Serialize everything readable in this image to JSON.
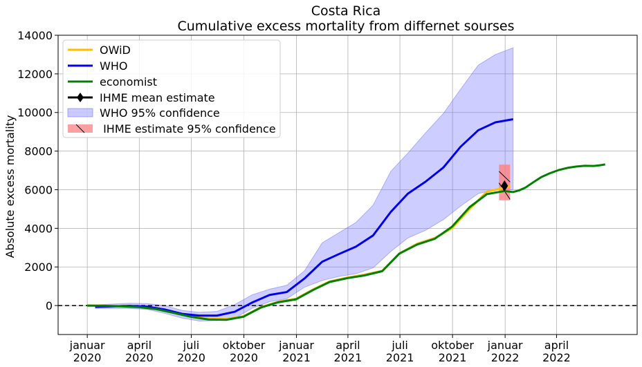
{
  "chart_data": {
    "type": "line",
    "title": "Costa Rica",
    "subtitle": "Cumulative excess mortality from differnet sourses",
    "xlabel": "",
    "ylabel": "Absolute excess mortality",
    "ylim": [
      -1500,
      14000
    ],
    "xlim": [
      "2019-11-11",
      "2022-08-20"
    ],
    "grid": true,
    "legend_position": "top-left",
    "x_ticks": [
      {
        "date": "2020-01-01",
        "line1": "januar",
        "line2": "2020"
      },
      {
        "date": "2020-04-01",
        "line1": "april",
        "line2": "2020"
      },
      {
        "date": "2020-07-01",
        "line1": "juli",
        "line2": "2020"
      },
      {
        "date": "2020-10-01",
        "line1": "oktober",
        "line2": "2020"
      },
      {
        "date": "2021-01-01",
        "line1": "januar",
        "line2": "2021"
      },
      {
        "date": "2021-04-01",
        "line1": "april",
        "line2": "2021"
      },
      {
        "date": "2021-07-01",
        "line1": "juli",
        "line2": "2021"
      },
      {
        "date": "2021-10-01",
        "line1": "oktober",
        "line2": "2021"
      },
      {
        "date": "2022-01-01",
        "line1": "januar",
        "line2": "2022"
      },
      {
        "date": "2022-04-01",
        "line1": "april",
        "line2": "2022"
      }
    ],
    "y_ticks": [
      0,
      2000,
      4000,
      6000,
      8000,
      10000,
      12000,
      14000
    ],
    "series": [
      {
        "name": "OWiD",
        "color": "#ffbf00",
        "points": [
          [
            "2020-01-01",
            0
          ],
          [
            "2020-01-31",
            0
          ],
          [
            "2020-03-01",
            -30
          ],
          [
            "2020-03-31",
            -60
          ],
          [
            "2020-04-30",
            -150
          ],
          [
            "2020-05-31",
            -350
          ],
          [
            "2020-06-30",
            -550
          ],
          [
            "2020-07-31",
            -680
          ],
          [
            "2020-08-31",
            -700
          ],
          [
            "2020-09-30",
            -560
          ],
          [
            "2020-10-31",
            -80
          ],
          [
            "2020-11-30",
            200
          ],
          [
            "2020-12-31",
            350
          ],
          [
            "2021-01-31",
            850
          ],
          [
            "2021-02-28",
            1250
          ],
          [
            "2021-03-31",
            1450
          ],
          [
            "2021-04-30",
            1600
          ],
          [
            "2021-05-31",
            1800
          ],
          [
            "2021-06-30",
            2700
          ],
          [
            "2021-07-31",
            3200
          ],
          [
            "2021-08-31",
            3500
          ],
          [
            "2021-09-30",
            4000
          ],
          [
            "2021-10-31",
            5000
          ],
          [
            "2021-11-30",
            5900
          ],
          [
            "2021-12-31",
            6100
          ],
          [
            "2022-01-10",
            6200
          ]
        ]
      },
      {
        "name": "WHO",
        "color": "#0000ee",
        "points": [
          [
            "2020-01-15",
            -70
          ],
          [
            "2020-02-15",
            -40
          ],
          [
            "2020-03-15",
            -20
          ],
          [
            "2020-04-15",
            -60
          ],
          [
            "2020-05-15",
            -200
          ],
          [
            "2020-06-15",
            -430
          ],
          [
            "2020-07-15",
            -520
          ],
          [
            "2020-08-15",
            -520
          ],
          [
            "2020-09-15",
            -320
          ],
          [
            "2020-10-15",
            150
          ],
          [
            "2020-11-15",
            550
          ],
          [
            "2020-12-15",
            700
          ],
          [
            "2021-01-15",
            1400
          ],
          [
            "2021-02-15",
            2270
          ],
          [
            "2021-03-15",
            2650
          ],
          [
            "2021-04-15",
            3050
          ],
          [
            "2021-05-15",
            3630
          ],
          [
            "2021-06-15",
            4850
          ],
          [
            "2021-07-15",
            5800
          ],
          [
            "2021-08-15",
            6420
          ],
          [
            "2021-09-15",
            7150
          ],
          [
            "2021-10-15",
            8220
          ],
          [
            "2021-11-15",
            9080
          ],
          [
            "2021-12-15",
            9490
          ],
          [
            "2022-01-15",
            9650
          ]
        ]
      },
      {
        "name": "economist",
        "color": "#008000",
        "points": [
          [
            "2020-01-01",
            0
          ],
          [
            "2020-01-31",
            -10
          ],
          [
            "2020-03-01",
            -40
          ],
          [
            "2020-03-31",
            -80
          ],
          [
            "2020-04-30",
            -180
          ],
          [
            "2020-05-31",
            -380
          ],
          [
            "2020-06-30",
            -580
          ],
          [
            "2020-07-31",
            -720
          ],
          [
            "2020-08-31",
            -740
          ],
          [
            "2020-09-30",
            -580
          ],
          [
            "2020-10-31",
            -100
          ],
          [
            "2020-11-30",
            170
          ],
          [
            "2020-12-31",
            320
          ],
          [
            "2021-01-31",
            820
          ],
          [
            "2021-02-28",
            1220
          ],
          [
            "2021-03-31",
            1420
          ],
          [
            "2021-04-30",
            1560
          ],
          [
            "2021-05-31",
            1780
          ],
          [
            "2021-06-30",
            2690
          ],
          [
            "2021-07-31",
            3160
          ],
          [
            "2021-08-31",
            3460
          ],
          [
            "2021-09-30",
            4080
          ],
          [
            "2021-10-31",
            5100
          ],
          [
            "2021-11-30",
            5770
          ],
          [
            "2021-12-15",
            5850
          ],
          [
            "2021-12-31",
            5930
          ],
          [
            "2022-01-15",
            5880
          ],
          [
            "2022-01-25",
            5960
          ],
          [
            "2022-02-05",
            6100
          ],
          [
            "2022-02-20",
            6400
          ],
          [
            "2022-03-05",
            6650
          ],
          [
            "2022-03-20",
            6850
          ],
          [
            "2022-04-05",
            7020
          ],
          [
            "2022-04-20",
            7130
          ],
          [
            "2022-05-05",
            7200
          ],
          [
            "2022-05-20",
            7240
          ],
          [
            "2022-06-05",
            7230
          ],
          [
            "2022-06-15",
            7260
          ],
          [
            "2022-06-25",
            7310
          ]
        ]
      }
    ],
    "who_confidence": {
      "name": "WHO 95% confidence",
      "color": "#6666ff",
      "upper": [
        [
          "2020-01-15",
          30
        ],
        [
          "2020-02-15",
          80
        ],
        [
          "2020-03-15",
          120
        ],
        [
          "2020-04-15",
          100
        ],
        [
          "2020-05-15",
          0
        ],
        [
          "2020-06-15",
          -250
        ],
        [
          "2020-07-15",
          -350
        ],
        [
          "2020-08-15",
          -300
        ],
        [
          "2020-09-15",
          50
        ],
        [
          "2020-10-15",
          550
        ],
        [
          "2020-11-15",
          850
        ],
        [
          "2020-12-15",
          1050
        ],
        [
          "2021-01-15",
          1800
        ],
        [
          "2021-02-15",
          3250
        ],
        [
          "2021-03-15",
          3750
        ],
        [
          "2021-04-15",
          4300
        ],
        [
          "2021-05-15",
          5200
        ],
        [
          "2021-06-15",
          6950
        ],
        [
          "2021-07-15",
          7900
        ],
        [
          "2021-08-15",
          8950
        ],
        [
          "2021-09-15",
          9950
        ],
        [
          "2021-10-15",
          11200
        ],
        [
          "2021-11-15",
          12450
        ],
        [
          "2021-12-15",
          13000
        ],
        [
          "2022-01-15",
          13350
        ]
      ],
      "lower": [
        [
          "2020-01-15",
          -150
        ],
        [
          "2020-02-15",
          -150
        ],
        [
          "2020-03-15",
          -150
        ],
        [
          "2020-04-15",
          -200
        ],
        [
          "2020-05-15",
          -400
        ],
        [
          "2020-06-15",
          -650
        ],
        [
          "2020-07-15",
          -800
        ],
        [
          "2020-08-15",
          -780
        ],
        [
          "2020-09-15",
          -650
        ],
        [
          "2020-10-15",
          -150
        ],
        [
          "2020-11-15",
          200
        ],
        [
          "2020-12-15",
          350
        ],
        [
          "2021-01-15",
          950
        ],
        [
          "2021-02-15",
          1300
        ],
        [
          "2021-03-15",
          1500
        ],
        [
          "2021-04-15",
          1650
        ],
        [
          "2021-05-15",
          1950
        ],
        [
          "2021-06-15",
          2800
        ],
        [
          "2021-07-15",
          3500
        ],
        [
          "2021-08-15",
          3900
        ],
        [
          "2021-09-15",
          4450
        ],
        [
          "2021-10-15",
          5150
        ],
        [
          "2021-11-15",
          5800
        ],
        [
          "2021-12-15",
          6000
        ],
        [
          "2022-01-15",
          6000
        ]
      ]
    },
    "ihme": {
      "mean_name": "IHME mean estimate",
      "ci_name": " IHME estimate 95% confidence",
      "date": "2021-12-31",
      "mean": 6200,
      "lower": 5450,
      "upper": 7300,
      "color_box": "#ff8080",
      "color_marker": "#000000"
    },
    "reference_line": {
      "y": 0,
      "style": "dashed",
      "color": "#000000"
    }
  }
}
